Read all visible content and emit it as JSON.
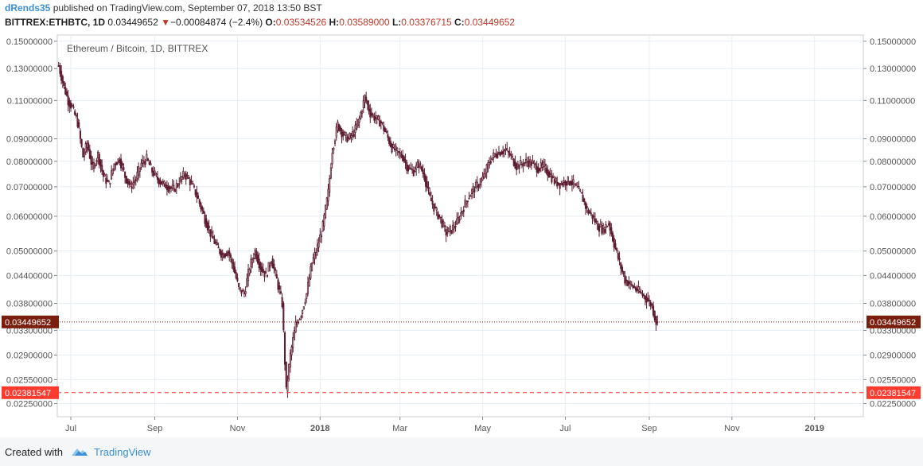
{
  "header": {
    "user": "dRends35",
    "published_text": " published on TradingView.com, September 07, 2018 13:50 BST",
    "symbol": "BITTREX:ETHBTC, 1D",
    "last": "0.03449652",
    "arrow": "▼",
    "change": "−0.00084874 (−2.4%)",
    "o_label": "O:",
    "o_value": "0.03534526",
    "h_label": "H:",
    "h_value": "0.03589000",
    "l_label": "L:",
    "l_value": "0.03376715",
    "c_label": "C:",
    "c_value": "0.03449652"
  },
  "footer": {
    "created_with": "Created with",
    "brand": "TradingView"
  },
  "chart_data": {
    "type": "candlestick",
    "title": "Ethereum / Bitcoin, 1D, BITTREX",
    "y_scale": "log",
    "ylim": [
      0.021,
      0.155
    ],
    "xlim": [
      "2017-06-21",
      "2019-02-06"
    ],
    "y_ticks": [
      "0.15000000",
      "0.13000000",
      "0.11000000",
      "0.09000000",
      "0.08000000",
      "0.07000000",
      "0.06000000",
      "0.05000000",
      "0.04400000",
      "0.03800000",
      "0.03300000",
      "0.02900000",
      "0.02550000",
      "0.02250000"
    ],
    "x_ticks": [
      {
        "date": "2017-07-01",
        "label": "Jul",
        "bold": false
      },
      {
        "date": "2017-09-01",
        "label": "Sep",
        "bold": false
      },
      {
        "date": "2017-11-01",
        "label": "Nov",
        "bold": false
      },
      {
        "date": "2018-01-01",
        "label": "2018",
        "bold": true
      },
      {
        "date": "2018-03-01",
        "label": "Mar",
        "bold": false
      },
      {
        "date": "2018-05-01",
        "label": "May",
        "bold": false
      },
      {
        "date": "2018-07-01",
        "label": "Jul",
        "bold": false
      },
      {
        "date": "2018-09-01",
        "label": "Sep",
        "bold": false
      },
      {
        "date": "2018-11-01",
        "label": "Nov",
        "bold": false
      },
      {
        "date": "2019-01-01",
        "label": "2019",
        "bold": true
      }
    ],
    "price_line": {
      "value": 0.03449652,
      "label": "0.03449652",
      "color": "#7a1f0e"
    },
    "alert_line": {
      "value": 0.02381547,
      "label": "0.02381547",
      "color": "#ff3b30"
    },
    "colors": {
      "up": "#ffffff",
      "down": "#6b1f35",
      "border": "#5a1a2e",
      "grid": "#e6eef5"
    },
    "close_path": [
      [
        "2017-06-22",
        0.132
      ],
      [
        "2017-06-26",
        0.118
      ],
      [
        "2017-06-29",
        0.11
      ],
      [
        "2017-07-02",
        0.106
      ],
      [
        "2017-07-06",
        0.098
      ],
      [
        "2017-07-10",
        0.082
      ],
      [
        "2017-07-13",
        0.088
      ],
      [
        "2017-07-17",
        0.077
      ],
      [
        "2017-07-21",
        0.083
      ],
      [
        "2017-07-25",
        0.074
      ],
      [
        "2017-07-29",
        0.071
      ],
      [
        "2017-08-02",
        0.079
      ],
      [
        "2017-08-06",
        0.081
      ],
      [
        "2017-08-10",
        0.074
      ],
      [
        "2017-08-14",
        0.07
      ],
      [
        "2017-08-18",
        0.073
      ],
      [
        "2017-08-22",
        0.079
      ],
      [
        "2017-08-26",
        0.081
      ],
      [
        "2017-08-30",
        0.076
      ],
      [
        "2017-09-03",
        0.073
      ],
      [
        "2017-09-07",
        0.071
      ],
      [
        "2017-09-11",
        0.07
      ],
      [
        "2017-09-15",
        0.069
      ],
      [
        "2017-09-19",
        0.072
      ],
      [
        "2017-09-23",
        0.075
      ],
      [
        "2017-09-27",
        0.072
      ],
      [
        "2017-10-01",
        0.068
      ],
      [
        "2017-10-05",
        0.063
      ],
      [
        "2017-10-09",
        0.058
      ],
      [
        "2017-10-13",
        0.054
      ],
      [
        "2017-10-17",
        0.051
      ],
      [
        "2017-10-21",
        0.049
      ],
      [
        "2017-10-25",
        0.05
      ],
      [
        "2017-10-29",
        0.046
      ],
      [
        "2017-11-02",
        0.041
      ],
      [
        "2017-11-06",
        0.04
      ],
      [
        "2017-11-10",
        0.046
      ],
      [
        "2017-11-14",
        0.05
      ],
      [
        "2017-11-18",
        0.046
      ],
      [
        "2017-11-22",
        0.044
      ],
      [
        "2017-11-26",
        0.048
      ],
      [
        "2017-11-30",
        0.043
      ],
      [
        "2017-12-04",
        0.038
      ],
      [
        "2017-12-07",
        0.024
      ],
      [
        "2017-12-10",
        0.029
      ],
      [
        "2017-12-14",
        0.034
      ],
      [
        "2017-12-18",
        0.036
      ],
      [
        "2017-12-22",
        0.04
      ],
      [
        "2017-12-26",
        0.047
      ],
      [
        "2017-12-30",
        0.051
      ],
      [
        "2018-01-03",
        0.057
      ],
      [
        "2018-01-07",
        0.068
      ],
      [
        "2018-01-10",
        0.085
      ],
      [
        "2018-01-14",
        0.097
      ],
      [
        "2018-01-18",
        0.092
      ],
      [
        "2018-01-22",
        0.09
      ],
      [
        "2018-01-26",
        0.093
      ],
      [
        "2018-01-30",
        0.1
      ],
      [
        "2018-02-03",
        0.112
      ],
      [
        "2018-02-07",
        0.103
      ],
      [
        "2018-02-11",
        0.1
      ],
      [
        "2018-02-15",
        0.098
      ],
      [
        "2018-02-19",
        0.092
      ],
      [
        "2018-02-23",
        0.086
      ],
      [
        "2018-02-27",
        0.084
      ],
      [
        "2018-03-03",
        0.082
      ],
      [
        "2018-03-07",
        0.077
      ],
      [
        "2018-03-11",
        0.076
      ],
      [
        "2018-03-15",
        0.079
      ],
      [
        "2018-03-19",
        0.074
      ],
      [
        "2018-03-23",
        0.066
      ],
      [
        "2018-03-27",
        0.062
      ],
      [
        "2018-03-31",
        0.059
      ],
      [
        "2018-04-04",
        0.055
      ],
      [
        "2018-04-08",
        0.056
      ],
      [
        "2018-04-12",
        0.058
      ],
      [
        "2018-04-16",
        0.062
      ],
      [
        "2018-04-20",
        0.066
      ],
      [
        "2018-04-24",
        0.069
      ],
      [
        "2018-04-28",
        0.071
      ],
      [
        "2018-05-02",
        0.074
      ],
      [
        "2018-05-06",
        0.08
      ],
      [
        "2018-05-10",
        0.083
      ],
      [
        "2018-05-14",
        0.084
      ],
      [
        "2018-05-18",
        0.085
      ],
      [
        "2018-05-22",
        0.082
      ],
      [
        "2018-05-26",
        0.078
      ],
      [
        "2018-05-30",
        0.079
      ],
      [
        "2018-06-03",
        0.08
      ],
      [
        "2018-06-07",
        0.079
      ],
      [
        "2018-06-11",
        0.077
      ],
      [
        "2018-06-15",
        0.078
      ],
      [
        "2018-06-19",
        0.075
      ],
      [
        "2018-06-23",
        0.072
      ],
      [
        "2018-06-27",
        0.071
      ],
      [
        "2018-07-01",
        0.072
      ],
      [
        "2018-07-05",
        0.072
      ],
      [
        "2018-07-09",
        0.07
      ],
      [
        "2018-07-13",
        0.067
      ],
      [
        "2018-07-17",
        0.062
      ],
      [
        "2018-07-21",
        0.06
      ],
      [
        "2018-07-25",
        0.057
      ],
      [
        "2018-07-29",
        0.056
      ],
      [
        "2018-08-02",
        0.058
      ],
      [
        "2018-08-06",
        0.052
      ],
      [
        "2018-08-10",
        0.047
      ],
      [
        "2018-08-14",
        0.043
      ],
      [
        "2018-08-18",
        0.042
      ],
      [
        "2018-08-22",
        0.041
      ],
      [
        "2018-08-26",
        0.04
      ],
      [
        "2018-08-30",
        0.039
      ],
      [
        "2018-09-03",
        0.0375
      ],
      [
        "2018-09-06",
        0.0345
      ],
      [
        "2018-09-07",
        0.03449652
      ]
    ]
  }
}
